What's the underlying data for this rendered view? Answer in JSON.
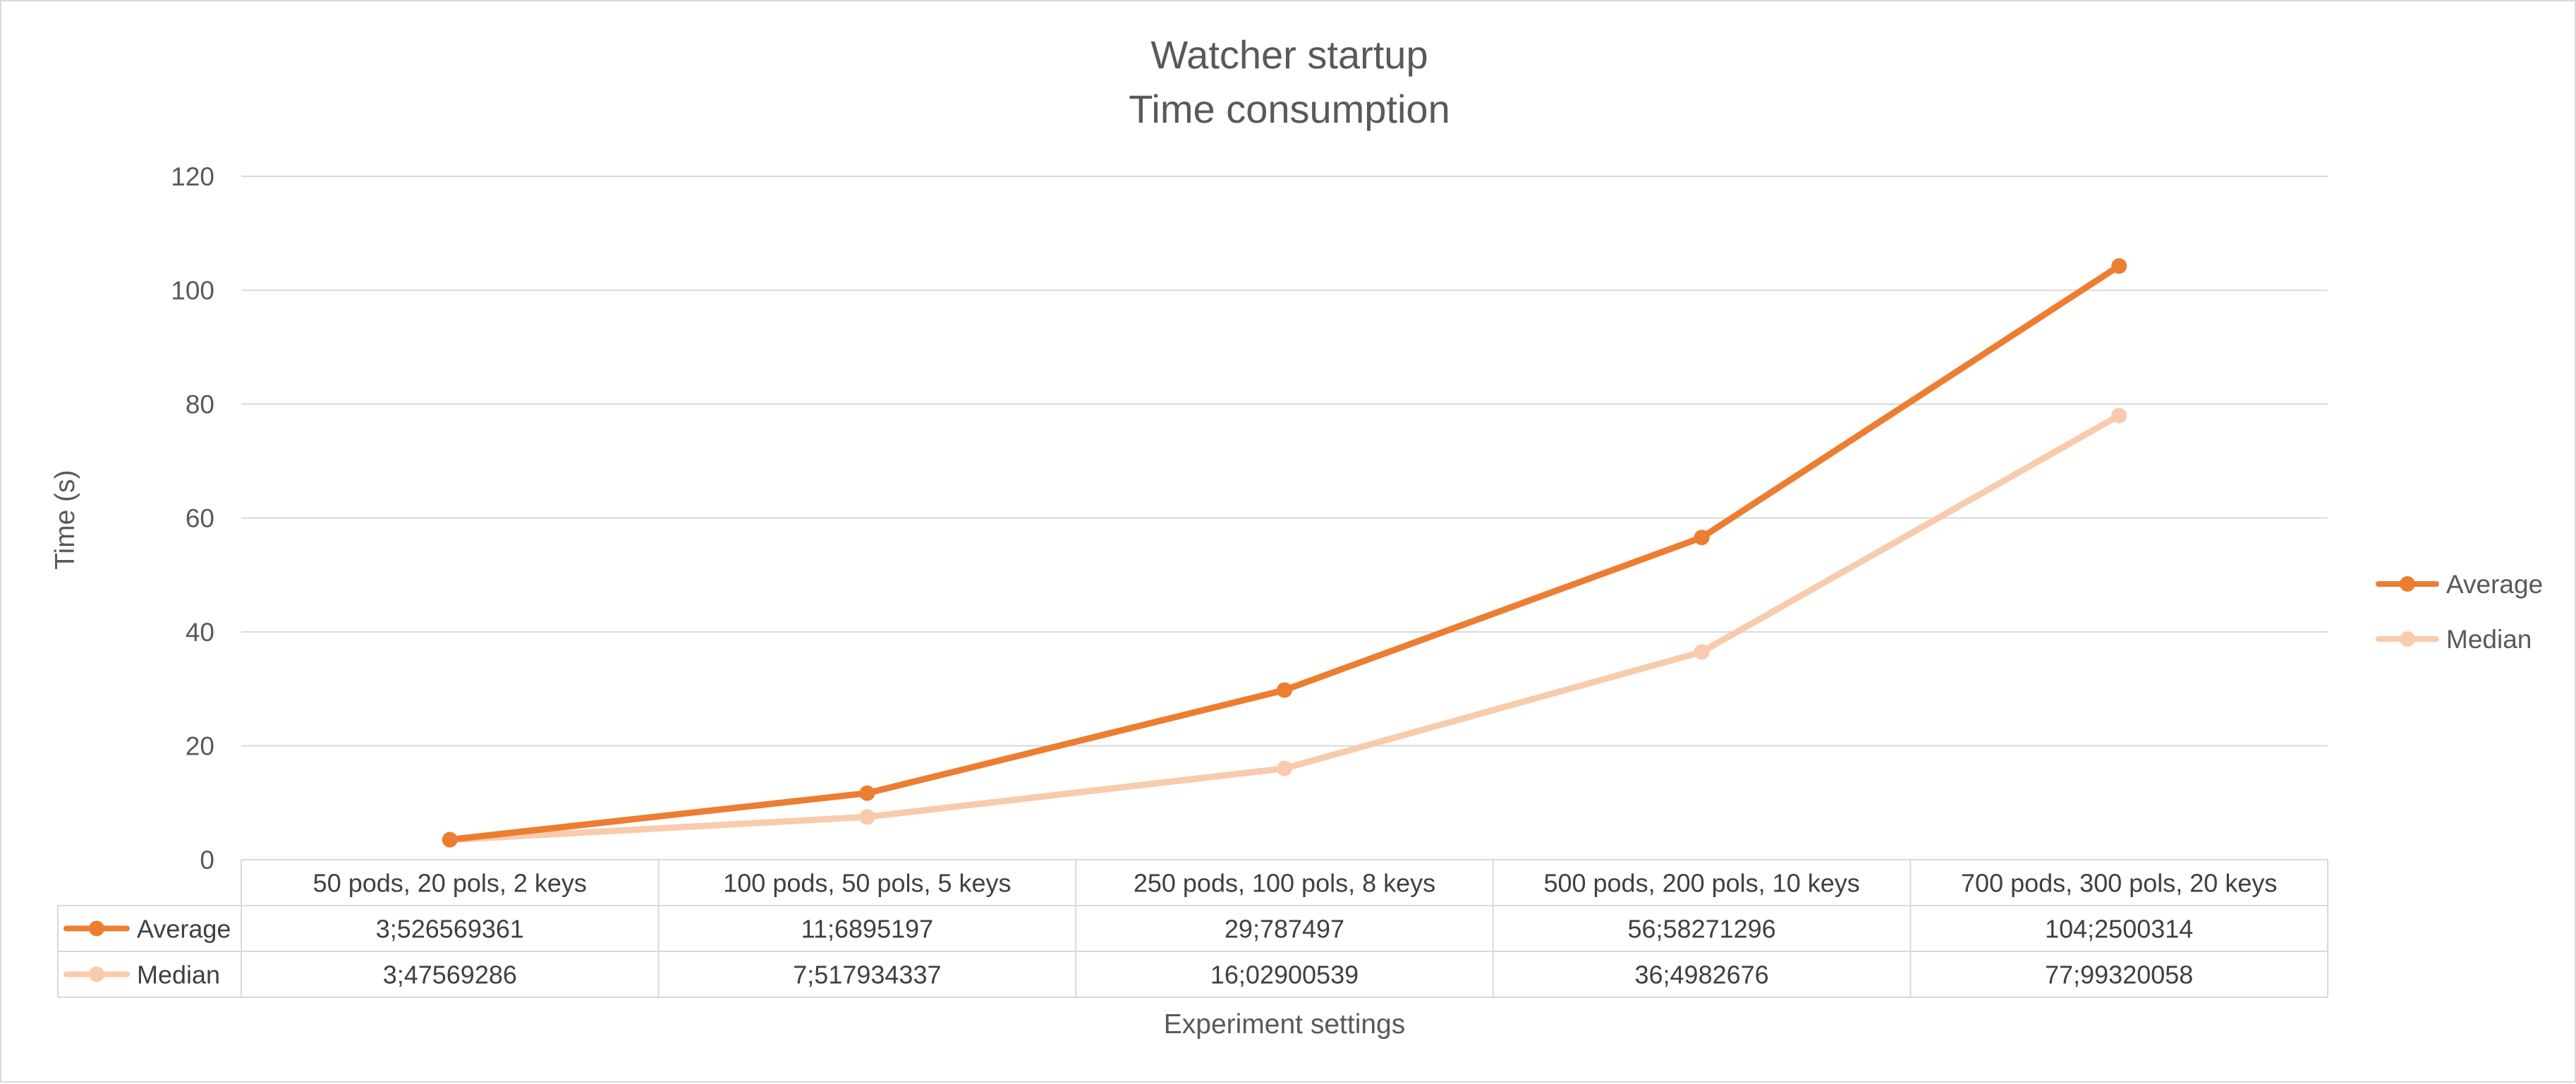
{
  "chart_data": {
    "type": "line",
    "title": "Watcher startup",
    "subtitle": "Time consumption",
    "xlabel": "Experiment settings",
    "ylabel": "Time (s)",
    "ylim": [
      0,
      120
    ],
    "yticks": [
      "0",
      "20",
      "40",
      "60",
      "80",
      "100",
      "120"
    ],
    "grid": "horizontal",
    "legend_position": "right",
    "categories": [
      "50 pods, 20 pols, 2 keys",
      "100 pods, 50 pols, 5 keys",
      "250 pods, 100 pols, 8 keys",
      "500 pods, 200 pols, 10 keys",
      "700 pods, 300 pols, 20 keys"
    ],
    "series": [
      {
        "name": "Average",
        "color": "#ED7D31",
        "values": [
          3.526569361,
          11.6895197,
          29.787497,
          56.58271296,
          104.2500314
        ],
        "table_values": [
          "3;526569361",
          "11;6895197",
          "29;787497",
          "56;58271296",
          "104;2500314"
        ]
      },
      {
        "name": "Median",
        "color": "#F8CBAD",
        "values": [
          3.47569286,
          7.517934337,
          16.02900539,
          36.4982676,
          77.99320058
        ],
        "table_values": [
          "3;47569286",
          "7;517934337",
          "16;02900539",
          "36;4982676",
          "77;99320058"
        ]
      }
    ]
  }
}
